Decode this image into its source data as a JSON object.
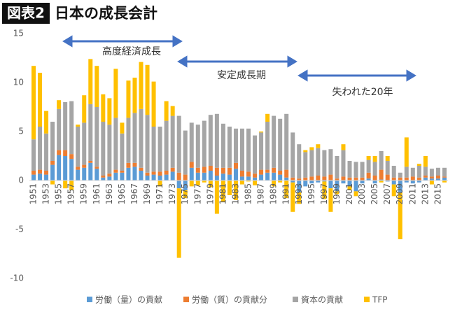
{
  "badge": "図表2",
  "chart_data": {
    "type": "bar",
    "stacked": true,
    "title": "日本の成長会計",
    "annotations": [
      "高度経済成長",
      "安定成長期",
      "失われた20年"
    ],
    "categories": [
      "1951",
      null,
      "1953",
      null,
      "1955",
      null,
      "1957",
      null,
      "1959",
      null,
      "1961",
      null,
      "1963",
      null,
      "1965",
      null,
      "1967",
      null,
      "1969",
      null,
      "1971",
      null,
      "1973",
      null,
      "1975",
      null,
      "1977",
      null,
      "1979",
      null,
      "1981",
      null,
      "1983",
      null,
      "1985",
      null,
      "1987",
      null,
      "1989",
      null,
      "1991",
      null,
      "1993",
      null,
      "1995",
      null,
      "1997",
      null,
      "1999",
      null,
      "2001",
      null,
      "2003",
      null,
      "2005",
      null,
      "2007",
      null,
      "2009",
      null,
      "2011",
      null,
      "2013",
      null,
      "2015",
      null
    ],
    "series": [
      {
        "name": "労働（量）の貢献",
        "color": "#5b9bd5",
        "values": [
          0.6,
          0.7,
          0.6,
          1.6,
          2.6,
          2.5,
          2.2,
          1.1,
          1.3,
          1.8,
          1.2,
          0.3,
          0.4,
          0.8,
          0.8,
          1.3,
          1.4,
          1.0,
          0.5,
          0.6,
          0.5,
          0.6,
          0.9,
          -0.8,
          -1.0,
          1.3,
          0.8,
          0.8,
          1.0,
          0.5,
          0.7,
          0.6,
          1.2,
          0.4,
          0.4,
          0.3,
          0.6,
          0.8,
          0.8,
          0.6,
          0.3,
          -0.2,
          -1.2,
          -0.6,
          -0.3,
          -0.2,
          -0.1,
          -0.8,
          -1.1,
          -0.3,
          -0.6,
          -1.1,
          -0.3,
          0.2,
          -0.3,
          0.1,
          -0.1,
          -0.4,
          -1.2,
          -0.2,
          -0.3,
          -0.2,
          0.3,
          0.2,
          0.2,
          0.3
        ]
      },
      {
        "name": "労働（質）の貢献分",
        "color": "#ed7d31",
        "values": [
          0.4,
          0.4,
          0.4,
          0.4,
          0.5,
          0.6,
          0.5,
          0.3,
          0.3,
          0.2,
          0.2,
          0.2,
          0.3,
          0.3,
          0.2,
          0.5,
          0.4,
          0.3,
          0.3,
          0.3,
          0.4,
          0.4,
          0.4,
          0.8,
          0.6,
          0.6,
          0.5,
          0.6,
          0.5,
          0.8,
          0.6,
          0.7,
          0.6,
          0.6,
          0.5,
          0.4,
          0.5,
          0.3,
          0.5,
          0.4,
          0.8,
          0.3,
          0.2,
          0.3,
          0.4,
          0.5,
          0.4,
          0.6,
          0.2,
          0.4,
          0.3,
          0.3,
          0.3,
          0.6,
          0.5,
          1.0,
          0.6,
          0.3,
          0.3,
          0.3,
          0.4,
          0.3,
          0.2,
          0.2,
          0.3,
          0.1
        ]
      },
      {
        "name": "資本の貢献",
        "color": "#a5a5a5",
        "values": [
          3.2,
          4.4,
          3.8,
          4.0,
          4.2,
          4.9,
          5.4,
          4.1,
          4.3,
          5.8,
          6.1,
          5.5,
          5.0,
          5.3,
          3.8,
          4.6,
          5.1,
          6.0,
          5.9,
          4.6,
          4.6,
          5.1,
          5.3,
          5.8,
          4.5,
          4.0,
          4.4,
          4.7,
          5.2,
          5.5,
          4.5,
          4.2,
          3.5,
          4.3,
          4.4,
          3.9,
          3.8,
          4.9,
          5.3,
          5.3,
          5.7,
          4.6,
          3.5,
          2.6,
          2.7,
          2.8,
          2.7,
          2.6,
          2.3,
          2.7,
          1.7,
          1.6,
          1.6,
          1.3,
          1.4,
          1.9,
          1.4,
          1.2,
          0.5,
          1.1,
          0.9,
          1.2,
          0.9,
          0.8,
          0.8,
          0.9
        ]
      },
      {
        "name": "TFP",
        "color": "#ffc000",
        "values": [
          7.5,
          5.5,
          2.3,
          -0.4,
          0.9,
          -0.8,
          -1.0,
          0.2,
          2.8,
          4.6,
          4.2,
          2.8,
          2.7,
          5.0,
          1.1,
          3.8,
          3.6,
          4.8,
          5.1,
          4.6,
          -0.6,
          2.0,
          1.0,
          -7.1,
          -0.8,
          -0.6,
          -0.5,
          -0.2,
          -0.7,
          -3.4,
          -2.2,
          -1.5,
          -2.0,
          -0.4,
          -0.1,
          -0.5,
          0.1,
          0.8,
          -0.6,
          -0.2,
          -1.8,
          -3.0,
          -1.2,
          0.2,
          0.3,
          0.4,
          -1.8,
          -2.4,
          -0.3,
          0.6,
          -0.4,
          -0.5,
          0.0,
          0.4,
          0.6,
          -0.2,
          0.5,
          -1.2,
          -4.8,
          3.0,
          0.0,
          0.2,
          1.1,
          -0.4,
          0.0,
          -0.2
        ]
      }
    ],
    "ylim": [
      -10,
      15
    ],
    "yticks": [
      15,
      10,
      5,
      0,
      -5,
      -10
    ]
  }
}
